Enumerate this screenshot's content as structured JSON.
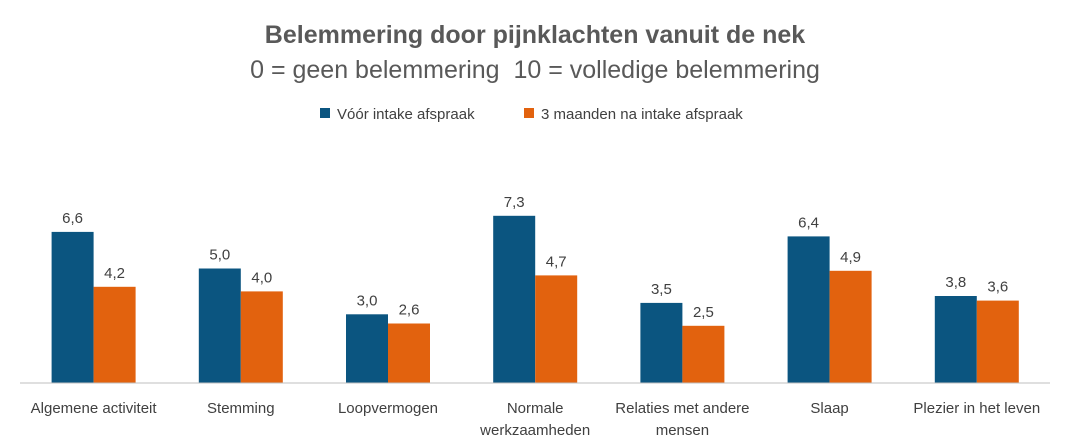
{
  "chart_data": {
    "type": "bar",
    "title": "Belemmering door pijnklachten vanuit de nek",
    "subtitle": "0 = geen belemmering  10 = volledige belemmering",
    "categories": [
      [
        "Algemene activiteit"
      ],
      [
        "Stemming"
      ],
      [
        "Loopvermogen"
      ],
      [
        "Normale",
        "werkzaamheden"
      ],
      [
        "Relaties met andere",
        "mensen"
      ],
      [
        "Slaap"
      ],
      [
        "Plezier in het leven"
      ]
    ],
    "series": [
      {
        "name": "Vóór intake afspraak",
        "color": "#0B5580",
        "values": [
          6.6,
          5.0,
          3.0,
          7.3,
          3.5,
          6.4,
          3.8
        ],
        "labels": [
          "6,6",
          "5,0",
          "3,0",
          "7,3",
          "3,5",
          "6,4",
          "3,8"
        ]
      },
      {
        "name": "3 maanden na intake afspraak",
        "color": "#E2620E",
        "values": [
          4.2,
          4.0,
          2.6,
          4.7,
          2.5,
          4.9,
          3.6
        ],
        "labels": [
          "4,2",
          "4,0",
          "2,6",
          "4,7",
          "2,5",
          "4,9",
          "3,6"
        ]
      }
    ],
    "xlabel": "",
    "ylabel": "",
    "ylim": [
      0,
      10
    ],
    "grid": false,
    "legend_position": "top-center",
    "axis_color": "#BFBFBF"
  }
}
